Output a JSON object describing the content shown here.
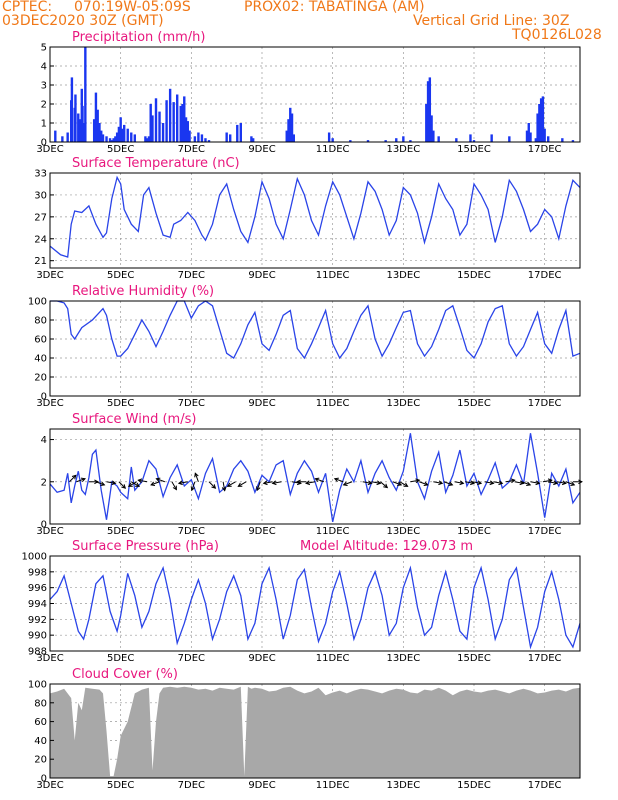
{
  "header": {
    "line1_left": "CPTEC:",
    "line1_coords": "070:19W-05:09S",
    "line1_station": "PROX02: TABATINGA (AM)",
    "line2_left": "03DEC2020 30Z (GMT)",
    "line2_right": "Vertical Grid Line: 30Z",
    "line3_right": "TQ0126L028"
  },
  "colors": {
    "header": "#f07818",
    "title": "#e8177e",
    "line": "#2a44e8",
    "bar": "#1a36f0",
    "cloud": "#a8a8a8",
    "arrow": "#000000"
  },
  "x_ticks": [
    "3DEC",
    "5DEC",
    "7DEC",
    "9DEC",
    "11DEC",
    "13DEC",
    "15DEC",
    "17DEC"
  ],
  "x_range_days": [
    3,
    18
  ],
  "chart_data": [
    {
      "id": "precipitation",
      "type": "bar",
      "title": "Precipitation (mm/h)",
      "ylim": [
        0,
        5
      ],
      "yticks": [
        0,
        1,
        2,
        3,
        4,
        5
      ],
      "grid": true,
      "x_days": [
        3.15,
        3.35,
        3.5,
        3.6,
        3.62,
        3.7,
        3.72,
        3.8,
        3.85,
        3.9,
        3.92,
        3.95,
        4.0,
        4.25,
        4.3,
        4.35,
        4.4,
        4.45,
        4.5,
        4.6,
        4.7,
        4.75,
        4.8,
        4.85,
        4.9,
        4.95,
        5.0,
        5.05,
        5.1,
        5.2,
        5.3,
        5.4,
        5.7,
        5.75,
        5.8,
        5.85,
        5.9,
        6.0,
        6.1,
        6.2,
        6.3,
        6.4,
        6.5,
        6.6,
        6.7,
        6.75,
        6.8,
        6.85,
        6.9,
        6.95,
        7.1,
        7.2,
        7.3,
        7.4,
        7.5,
        8.0,
        8.1,
        8.3,
        8.4,
        8.7,
        8.75,
        9.7,
        9.75,
        9.8,
        9.85,
        9.9,
        10.9,
        11.0,
        11.5,
        12.0,
        12.5,
        12.8,
        13.0,
        13.2,
        13.65,
        13.7,
        13.75,
        13.8,
        13.85,
        14.0,
        14.5,
        14.9,
        15.0,
        15.5,
        16.0,
        16.5,
        16.55,
        16.6,
        16.75,
        16.8,
        16.85,
        16.9,
        16.95,
        17.0,
        17.1,
        17.5,
        17.8
      ],
      "values": [
        0.6,
        0.3,
        0.5,
        2.2,
        3.4,
        1.8,
        2.5,
        1.5,
        1.2,
        2.8,
        1.9,
        1.0,
        5.0,
        1.2,
        2.6,
        1.7,
        1.0,
        0.6,
        0.4,
        0.3,
        0.2,
        0.1,
        0.2,
        0.3,
        0.5,
        0.8,
        1.3,
        0.7,
        0.9,
        0.7,
        0.5,
        0.4,
        0.3,
        0.2,
        0.3,
        2.0,
        1.4,
        2.3,
        1.6,
        1.0,
        2.2,
        2.8,
        2.1,
        2.5,
        1.9,
        2.0,
        2.4,
        1.3,
        1.1,
        0.6,
        0.3,
        0.5,
        0.4,
        0.2,
        0.1,
        0.5,
        0.4,
        0.9,
        1.0,
        0.3,
        0.2,
        0.6,
        1.2,
        1.8,
        1.5,
        0.4,
        0.5,
        0.2,
        0.1,
        0.1,
        0.1,
        0.2,
        0.3,
        0.1,
        2.0,
        3.2,
        3.4,
        1.4,
        0.6,
        0.3,
        0.2,
        0.4,
        0.1,
        0.4,
        0.3,
        0.6,
        1.0,
        0.5,
        0.2,
        1.5,
        2.0,
        2.3,
        2.4,
        0.7,
        0.3,
        0.2,
        0.1
      ]
    },
    {
      "id": "temperature",
      "type": "line",
      "title": "Surface Temperature (nC)",
      "ylim": [
        20,
        33
      ],
      "yticks": [
        21,
        24,
        27,
        30,
        33
      ],
      "grid": true,
      "x_days": [
        3.0,
        3.3,
        3.5,
        3.6,
        3.7,
        3.9,
        4.1,
        4.3,
        4.5,
        4.6,
        4.75,
        4.9,
        5.0,
        5.1,
        5.3,
        5.5,
        5.65,
        5.8,
        6.0,
        6.2,
        6.4,
        6.5,
        6.7,
        6.9,
        7.1,
        7.3,
        7.4,
        7.6,
        7.8,
        8.0,
        8.2,
        8.4,
        8.6,
        8.8,
        9.0,
        9.2,
        9.4,
        9.6,
        9.8,
        10.0,
        10.2,
        10.4,
        10.6,
        10.8,
        11.0,
        11.2,
        11.4,
        11.6,
        11.8,
        12.0,
        12.2,
        12.4,
        12.6,
        12.8,
        13.0,
        13.2,
        13.4,
        13.6,
        13.8,
        14.0,
        14.2,
        14.4,
        14.6,
        14.8,
        15.0,
        15.2,
        15.4,
        15.6,
        15.8,
        16.0,
        16.2,
        16.4,
        16.6,
        16.8,
        17.0,
        17.2,
        17.4,
        17.6,
        17.8,
        18.0
      ],
      "values": [
        23.0,
        21.8,
        21.5,
        26.0,
        27.8,
        27.6,
        28.5,
        26.0,
        24.2,
        24.8,
        29.5,
        32.4,
        31.5,
        28.0,
        26.0,
        25.0,
        30.0,
        31.0,
        27.5,
        24.5,
        24.2,
        26.0,
        26.5,
        27.6,
        26.5,
        24.5,
        23.8,
        26.0,
        30.0,
        31.5,
        28.0,
        25.0,
        23.5,
        27.0,
        31.8,
        29.5,
        26.0,
        24.0,
        28.0,
        32.2,
        30.0,
        26.5,
        24.5,
        28.5,
        31.8,
        30.0,
        27.0,
        24.0,
        27.5,
        31.8,
        30.5,
        28.0,
        24.5,
        26.5,
        31.0,
        30.0,
        27.5,
        23.5,
        27.0,
        31.5,
        29.5,
        28.0,
        24.5,
        26.0,
        31.5,
        30.0,
        28.0,
        23.5,
        27.0,
        32.0,
        30.5,
        28.0,
        25.0,
        26.0,
        28.0,
        27.0,
        24.0,
        28.5,
        32.0,
        31.0
      ]
    },
    {
      "id": "humidity",
      "type": "line",
      "title": "Relative Humidity (%)",
      "ylim": [
        0,
        100
      ],
      "yticks": [
        0,
        20,
        40,
        60,
        80,
        100
      ],
      "grid": true,
      "x_days": [
        3.0,
        3.2,
        3.4,
        3.5,
        3.6,
        3.7,
        3.9,
        4.2,
        4.5,
        4.6,
        4.75,
        4.9,
        5.0,
        5.2,
        5.4,
        5.6,
        5.8,
        6.0,
        6.2,
        6.4,
        6.6,
        6.8,
        7.0,
        7.2,
        7.4,
        7.6,
        7.8,
        8.0,
        8.2,
        8.4,
        8.6,
        8.8,
        9.0,
        9.2,
        9.4,
        9.6,
        9.8,
        10.0,
        10.2,
        10.4,
        10.6,
        10.8,
        11.0,
        11.2,
        11.4,
        11.6,
        11.8,
        12.0,
        12.2,
        12.4,
        12.6,
        12.8,
        13.0,
        13.2,
        13.4,
        13.6,
        13.8,
        14.0,
        14.2,
        14.4,
        14.6,
        14.8,
        15.0,
        15.2,
        15.4,
        15.6,
        15.8,
        16.0,
        16.2,
        16.4,
        16.6,
        16.8,
        17.0,
        17.2,
        17.4,
        17.6,
        17.8,
        18.0
      ],
      "values": [
        100,
        100,
        98,
        92,
        65,
        60,
        72,
        80,
        92,
        85,
        60,
        42,
        42,
        50,
        65,
        80,
        68,
        52,
        68,
        85,
        100,
        100,
        82,
        95,
        100,
        95,
        70,
        45,
        40,
        55,
        75,
        88,
        55,
        48,
        65,
        85,
        90,
        50,
        40,
        55,
        72,
        90,
        55,
        40,
        50,
        68,
        85,
        95,
        60,
        42,
        55,
        72,
        88,
        90,
        55,
        42,
        52,
        70,
        90,
        95,
        72,
        48,
        40,
        55,
        78,
        92,
        95,
        55,
        42,
        52,
        70,
        88,
        55,
        45,
        70,
        90,
        42,
        45
      ]
    },
    {
      "id": "wind",
      "type": "line",
      "title": "Surface Wind (m/s)",
      "ylim": [
        0,
        4.5
      ],
      "yticks": [
        0,
        2,
        4
      ],
      "grid": true,
      "x_days": [
        3.0,
        3.2,
        3.4,
        3.5,
        3.6,
        3.7,
        3.8,
        3.9,
        4.0,
        4.1,
        4.2,
        4.3,
        4.45,
        4.6,
        4.75,
        4.9,
        5.0,
        5.2,
        5.3,
        5.4,
        5.6,
        5.8,
        6.0,
        6.2,
        6.4,
        6.6,
        6.8,
        7.0,
        7.2,
        7.4,
        7.6,
        7.8,
        8.0,
        8.2,
        8.4,
        8.6,
        8.8,
        9.0,
        9.2,
        9.4,
        9.6,
        9.8,
        10.0,
        10.2,
        10.4,
        10.6,
        10.8,
        11.0,
        11.2,
        11.4,
        11.6,
        11.8,
        12.0,
        12.2,
        12.4,
        12.6,
        12.8,
        13.0,
        13.2,
        13.4,
        13.6,
        13.8,
        14.0,
        14.2,
        14.4,
        14.6,
        14.8,
        15.0,
        15.2,
        15.4,
        15.6,
        15.8,
        16.0,
        16.2,
        16.4,
        16.6,
        16.8,
        17.0,
        17.2,
        17.4,
        17.6,
        17.8,
        18.0
      ],
      "values": [
        1.9,
        1.5,
        1.6,
        2.4,
        1.0,
        1.8,
        2.5,
        1.6,
        1.4,
        2.2,
        3.3,
        3.5,
        1.6,
        0.2,
        2.0,
        1.8,
        1.5,
        1.2,
        2.7,
        1.6,
        2.0,
        3.0,
        2.6,
        1.3,
        2.2,
        2.8,
        1.8,
        2.1,
        1.2,
        2.4,
        3.1,
        1.5,
        1.8,
        2.6,
        3.0,
        2.5,
        1.5,
        2.3,
        2.0,
        2.8,
        3.0,
        1.4,
        2.4,
        3.0,
        2.5,
        1.5,
        2.4,
        0.1,
        1.6,
        2.6,
        2.0,
        3.0,
        1.5,
        2.4,
        3.0,
        2.2,
        1.6,
        2.5,
        4.3,
        2.0,
        1.2,
        2.5,
        3.4,
        1.5,
        2.3,
        3.5,
        1.8,
        2.4,
        1.4,
        2.1,
        2.9,
        1.7,
        2.0,
        2.8,
        1.9,
        4.3,
        2.4,
        0.3,
        2.4,
        1.8,
        2.6,
        1.0,
        1.5
      ],
      "arrows_days": [
        3.55,
        3.75,
        4.1,
        4.3,
        4.6,
        4.95,
        5.3,
        5.45,
        5.75,
        6.1,
        6.25,
        6.45,
        6.9,
        7.1,
        7.2,
        7.5,
        7.9,
        8.25,
        8.55,
        8.95,
        9.3,
        9.55,
        9.85,
        10.25,
        10.5,
        10.75,
        11.3,
        11.55,
        11.85,
        12.1,
        12.35,
        12.7,
        12.9,
        13.2,
        13.45,
        13.85,
        14.15,
        14.45,
        14.75,
        14.95,
        15.3,
        15.55,
        15.9,
        16.15,
        16.35,
        16.6,
        16.95,
        17.1,
        17.35,
        17.6,
        17.8
      ],
      "arrows_dir_deg": [
        135,
        110,
        90,
        70,
        80,
        45,
        60,
        300,
        260,
        290,
        250,
        30,
        280,
        340,
        200,
        45,
        10,
        300,
        300,
        340,
        280,
        280,
        80,
        270,
        280,
        250,
        250,
        290,
        80,
        80,
        50,
        70,
        60,
        100,
        70,
        80,
        70,
        80,
        80,
        80,
        80,
        80,
        100,
        80,
        70,
        80,
        100,
        80,
        80,
        70,
        90
      ]
    },
    {
      "id": "pressure",
      "type": "line",
      "title": "Surface Pressure (hPa)",
      "annotation": "Model Altitude: 129.073  m",
      "ylim": [
        988,
        1000
      ],
      "yticks": [
        988,
        990,
        992,
        994,
        996,
        998,
        1000
      ],
      "grid": true,
      "x_days": [
        3.0,
        3.2,
        3.4,
        3.6,
        3.8,
        3.95,
        4.1,
        4.3,
        4.5,
        4.7,
        4.9,
        5.0,
        5.2,
        5.4,
        5.6,
        5.8,
        6.0,
        6.2,
        6.4,
        6.6,
        6.8,
        7.0,
        7.2,
        7.4,
        7.6,
        7.8,
        8.0,
        8.2,
        8.4,
        8.6,
        8.8,
        9.0,
        9.2,
        9.4,
        9.6,
        9.8,
        10.0,
        10.2,
        10.4,
        10.6,
        10.8,
        11.0,
        11.2,
        11.4,
        11.6,
        11.8,
        12.0,
        12.2,
        12.4,
        12.6,
        12.8,
        13.0,
        13.2,
        13.4,
        13.6,
        13.8,
        14.0,
        14.2,
        14.4,
        14.6,
        14.8,
        15.0,
        15.2,
        15.4,
        15.6,
        15.8,
        16.0,
        16.2,
        16.4,
        16.6,
        16.8,
        17.0,
        17.2,
        17.4,
        17.6,
        17.8,
        18.0
      ],
      "values": [
        994.5,
        995.5,
        997.5,
        994.0,
        990.5,
        989.5,
        992.0,
        996.5,
        997.5,
        993.0,
        990.5,
        992.5,
        997.8,
        995.0,
        991.0,
        993.0,
        996.5,
        998.5,
        994.5,
        989.0,
        991.5,
        994.5,
        997.0,
        994.0,
        989.5,
        992.0,
        995.5,
        997.5,
        995.0,
        989.5,
        991.5,
        996.5,
        998.5,
        994.5,
        989.5,
        992.5,
        997.0,
        998.3,
        993.5,
        989.2,
        991.5,
        995.5,
        998.0,
        994.0,
        989.5,
        992.0,
        996.0,
        998.0,
        995.0,
        990.0,
        991.5,
        996.0,
        998.5,
        993.5,
        990.0,
        991.0,
        995.0,
        998.0,
        994.5,
        990.5,
        989.5,
        996.0,
        998.5,
        994.5,
        989.5,
        992.0,
        997.0,
        998.5,
        993.5,
        988.5,
        991.0,
        995.5,
        998.0,
        994.5,
        990.0,
        988.5,
        991.5
      ]
    },
    {
      "id": "cloud",
      "type": "area",
      "title": "Cloud Cover (%)",
      "ylim": [
        0,
        100
      ],
      "yticks": [
        0,
        20,
        40,
        60,
        80,
        100
      ],
      "grid": true,
      "x_days": [
        3.0,
        3.2,
        3.4,
        3.6,
        3.7,
        3.8,
        3.9,
        4.0,
        4.2,
        4.4,
        4.5,
        4.6,
        4.7,
        4.8,
        4.9,
        5.0,
        5.2,
        5.4,
        5.6,
        5.8,
        5.9,
        6.0,
        6.1,
        6.2,
        6.4,
        6.6,
        6.8,
        7.0,
        7.2,
        7.4,
        7.6,
        7.8,
        8.0,
        8.2,
        8.4,
        8.5,
        8.6,
        8.7,
        8.8,
        9.0,
        9.2,
        9.4,
        9.6,
        9.8,
        10.0,
        10.2,
        10.4,
        10.6,
        10.8,
        11.0,
        11.2,
        11.4,
        11.6,
        11.8,
        12.0,
        12.2,
        12.4,
        12.6,
        12.8,
        13.0,
        13.2,
        13.4,
        13.6,
        13.8,
        14.0,
        14.2,
        14.4,
        14.6,
        14.8,
        15.0,
        15.2,
        15.4,
        15.6,
        15.8,
        16.0,
        16.2,
        16.4,
        16.6,
        16.8,
        17.0,
        17.2,
        17.4,
        17.6,
        17.8,
        18.0
      ],
      "values": [
        90,
        92,
        95,
        85,
        40,
        80,
        72,
        96,
        95,
        94,
        90,
        50,
        2,
        2,
        20,
        45,
        60,
        90,
        94,
        96,
        8,
        60,
        90,
        96,
        97,
        96,
        97,
        96,
        94,
        95,
        93,
        96,
        95,
        94,
        97,
        2,
        97,
        95,
        96,
        95,
        92,
        93,
        96,
        97,
        93,
        90,
        92,
        96,
        88,
        91,
        93,
        90,
        93,
        95,
        94,
        92,
        90,
        93,
        95,
        94,
        91,
        90,
        94,
        93,
        96,
        93,
        88,
        92,
        94,
        92,
        91,
        93,
        94,
        92,
        90,
        93,
        95,
        93,
        90,
        91,
        93,
        94,
        92,
        95,
        96
      ]
    }
  ]
}
